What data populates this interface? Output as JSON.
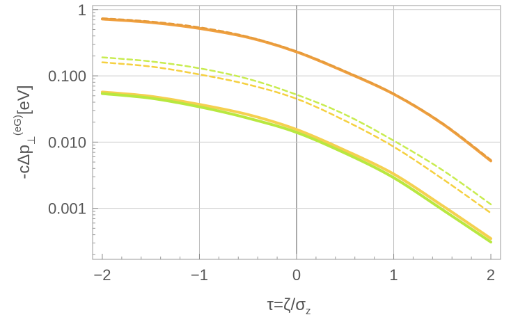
{
  "chart_data": {
    "type": "line",
    "title": "",
    "xlabel": "τ=ζ/σ_z",
    "xlabel_parts": {
      "main": "τ=ζ/σ",
      "sub": "z"
    },
    "ylabel": "-cΔp_⊥^(eG)[eV]",
    "ylabel_parts": {
      "a": "-cΔp",
      "sub": "⊥",
      "sup": "(eG)",
      "b": "[eV]"
    },
    "xlim": [
      -2.1,
      2.1
    ],
    "ylim": [
      0.00017,
      1.15
    ],
    "yscale": "log",
    "grid": true,
    "x_ticks": [
      -2,
      -1,
      0,
      1,
      2
    ],
    "x_tick_labels": [
      "−2",
      "−1",
      "0",
      "1",
      "2"
    ],
    "y_ticks": [
      1,
      0.1,
      0.01,
      0.001
    ],
    "y_tick_labels": [
      "1",
      "0.100",
      "0.010",
      "0.001"
    ],
    "x": [
      -2,
      -1.5,
      -1,
      -0.5,
      0,
      0.5,
      1,
      1.5,
      2
    ],
    "series": [
      {
        "style": "solid",
        "color": "#f0a040",
        "width": 4,
        "values": [
          0.72,
          0.64,
          0.52,
          0.38,
          0.23,
          0.115,
          0.053,
          0.019,
          0.0052
        ]
      },
      {
        "style": "dashed",
        "color": "#e59a3a",
        "width": 2.5,
        "values": [
          0.74,
          0.66,
          0.54,
          0.39,
          0.235,
          0.118,
          0.054,
          0.0195,
          0.0054
        ]
      },
      {
        "style": "dashed",
        "color": "#c8ec50",
        "width": 2.5,
        "values": [
          0.19,
          0.165,
          0.13,
          0.09,
          0.052,
          0.026,
          0.0105,
          0.0038,
          0.00115
        ]
      },
      {
        "style": "dashed",
        "color": "#f5d040",
        "width": 2.5,
        "values": [
          0.16,
          0.138,
          0.105,
          0.074,
          0.045,
          0.021,
          0.0085,
          0.0028,
          0.00085
        ]
      },
      {
        "style": "solid",
        "color": "#f5d050",
        "width": 4,
        "values": [
          0.057,
          0.049,
          0.037,
          0.026,
          0.0155,
          0.0075,
          0.0033,
          0.0011,
          0.00035
        ]
      },
      {
        "style": "solid",
        "color": "#b8e840",
        "width": 4,
        "values": [
          0.054,
          0.046,
          0.034,
          0.023,
          0.014,
          0.0068,
          0.0029,
          0.00096,
          0.00031
        ]
      }
    ]
  }
}
